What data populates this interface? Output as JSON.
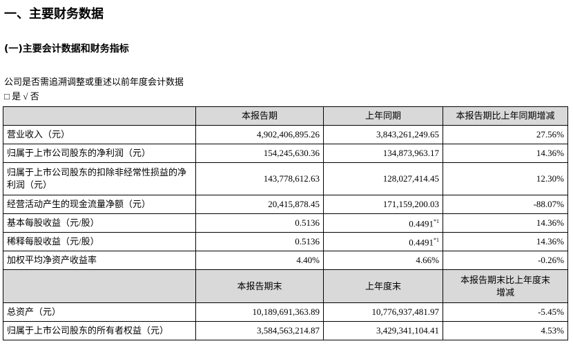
{
  "header": {
    "title": "一、主要财务数据",
    "subtitle": "(一)主要会计数据和财务指标"
  },
  "note": {
    "question": "公司是否需追溯调整或重述以前年度会计数据",
    "options": "□ 是 √ 否"
  },
  "table": {
    "header1": [
      "本报告期",
      "上年同期",
      "本报告期比上年同期增减"
    ],
    "rows1": [
      [
        "营业收入（元）",
        "4,902,406,895.26",
        "3,843,261,249.65",
        "27.56%"
      ],
      [
        "归属于上市公司股东的净利润（元）",
        "154,245,630.36",
        "134,873,963.17",
        "14.36%"
      ],
      [
        "归属于上市公司股东的扣除非经常性损益的净利润（元）",
        "143,778,612.63",
        "128,027,414.45",
        "12.30%"
      ],
      [
        "经营活动产生的现金流量净额（元）",
        "20,415,878.45",
        "171,159,200.03",
        "-88.07%"
      ],
      [
        "基本每股收益（元/股）",
        "0.5136",
        {
          "text": "0.4491",
          "sup": "*1"
        },
        "14.36%"
      ],
      [
        "稀释每股收益（元/股）",
        "0.5136",
        {
          "text": "0.4491",
          "sup": "*1"
        },
        "14.36%"
      ],
      [
        "加权平均净资产收益率",
        "4.40%",
        "4.66%",
        "-0.26%"
      ]
    ],
    "header2": [
      "本报告期末",
      "上年度末",
      "本报告期末比上年度末增减"
    ],
    "rows2": [
      [
        "总资产（元）",
        "10,189,691,363.89",
        "10,776,937,481.97",
        "-5.45%"
      ],
      [
        "归属于上市公司股东的所有者权益（元）",
        "3,584,563,214.87",
        "3,429,341,104.41",
        "4.53%"
      ]
    ]
  }
}
